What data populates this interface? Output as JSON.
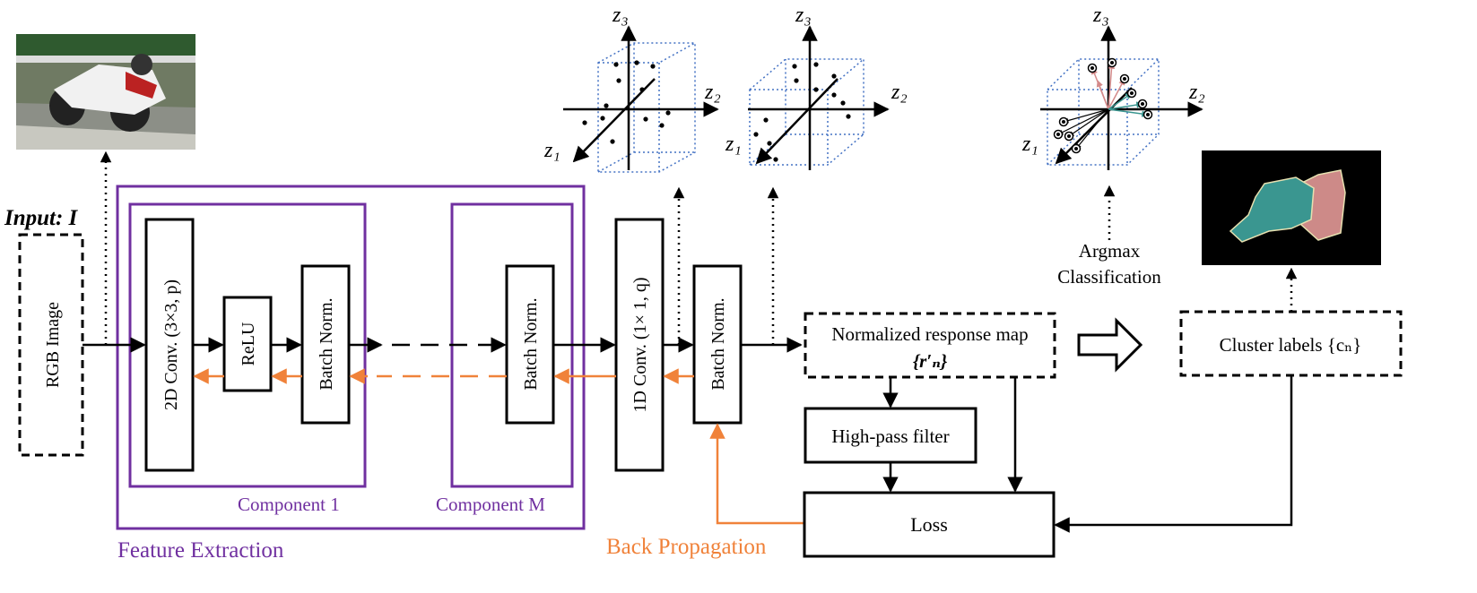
{
  "input": {
    "label": "Input: I",
    "box_label": "RGB Image"
  },
  "feature_extraction": {
    "title": "Feature Extraction",
    "component1_label": "Component 1",
    "componentM_label": "Component M",
    "conv2d_label": "2D Conv. (3×3, p)",
    "relu_label": "ReLU",
    "bn1_label": "Batch Norm.",
    "bnM_label": "Batch Norm."
  },
  "conv1d_label": "1D Conv. (1× 1, q)",
  "bn_final_label": "Batch Norm.",
  "response_map": {
    "line1": "Normalized response map",
    "line2": "{r′ₙ}"
  },
  "high_pass_label": "High-pass filter",
  "loss_label": "Loss",
  "back_propagation_label": "Back Propagation",
  "cluster_labels": "Cluster labels {cₙ}",
  "argmax": {
    "line1": "Argmax",
    "line2": "Classification"
  },
  "axes": {
    "z1": "z₁",
    "z2": "z₂",
    "z3": "z₃"
  },
  "colors": {
    "purple": "#7030a0",
    "orange": "#f0823a",
    "cube": "#4472c4",
    "pink": "#d48a8a",
    "teal": "#3a9690"
  }
}
